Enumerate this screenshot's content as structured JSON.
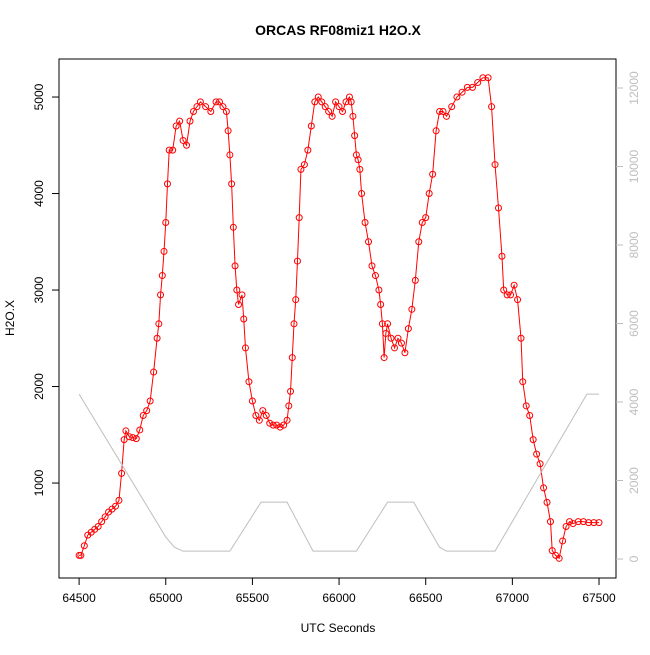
{
  "chart_data": {
    "type": "line",
    "title": "ORCAS RF08miz1 H2O.X",
    "x_label": "UTC Seconds",
    "y_label": "H2O.X",
    "xlim": [
      64384,
      67598
    ],
    "xticks": [
      64500,
      65000,
      65500,
      66000,
      66500,
      67000,
      67500
    ],
    "ylim": [
      16,
      5394
    ],
    "yticks": [
      1000,
      2000,
      3000,
      4000,
      5000
    ],
    "y2lim": [
      -484,
      12739
    ],
    "y2ticks": [
      0,
      2000,
      4000,
      6000,
      8000,
      10000,
      12000
    ],
    "series": [
      {
        "color": "#ff0000",
        "markers": true,
        "x": [
          64500,
          64510,
          64530,
          64550,
          64570,
          64590,
          64610,
          64630,
          64650,
          64670,
          64690,
          64710,
          64730,
          64745,
          64760,
          64770,
          64790,
          64810,
          64830,
          64850,
          64870,
          64890,
          64910,
          64930,
          64950,
          64960,
          64970,
          64980,
          64990,
          65000,
          65010,
          65020,
          65040,
          65060,
          65080,
          65100,
          65120,
          65140,
          65160,
          65180,
          65200,
          65230,
          65260,
          65290,
          65310,
          65330,
          65350,
          65360,
          65370,
          65380,
          65390,
          65400,
          65410,
          65420,
          65440,
          65450,
          65460,
          65480,
          65500,
          65520,
          65540,
          65560,
          65580,
          65600,
          65620,
          65640,
          65660,
          65680,
          65700,
          65710,
          65720,
          65730,
          65740,
          65750,
          65760,
          65770,
          65780,
          65800,
          65820,
          65840,
          65860,
          65880,
          65900,
          65920,
          65940,
          65960,
          65980,
          66000,
          66020,
          66040,
          66060,
          66070,
          66080,
          66090,
          66100,
          66110,
          66120,
          66130,
          66150,
          66170,
          66190,
          66210,
          66230,
          66240,
          66250,
          66260,
          66270,
          66280,
          66300,
          66320,
          66340,
          66360,
          66380,
          66400,
          66420,
          66440,
          66460,
          66480,
          66500,
          66520,
          66540,
          66560,
          66580,
          66600,
          66620,
          66650,
          66680,
          66710,
          66740,
          66770,
          66800,
          66830,
          66860,
          66880,
          66900,
          66920,
          66940,
          66950,
          66970,
          66990,
          67010,
          67030,
          67050,
          67060,
          67080,
          67100,
          67120,
          67140,
          67160,
          67180,
          67200,
          67220,
          67230,
          67250,
          67270,
          67290,
          67310,
          67330,
          67350,
          67380,
          67410,
          67440,
          67470,
          67500
        ],
        "values": [
          250,
          250,
          350,
          460,
          490,
          520,
          550,
          600,
          650,
          700,
          730,
          760,
          820,
          1100,
          1450,
          1540,
          1480,
          1470,
          1460,
          1550,
          1700,
          1750,
          1850,
          2150,
          2500,
          2650,
          2950,
          3150,
          3400,
          3700,
          4100,
          4450,
          4450,
          4700,
          4750,
          4550,
          4500,
          4750,
          4850,
          4900,
          4950,
          4900,
          4850,
          4950,
          4950,
          4900,
          4850,
          4650,
          4400,
          4100,
          3650,
          3250,
          3000,
          2850,
          2950,
          2700,
          2400,
          2050,
          1850,
          1700,
          1650,
          1750,
          1700,
          1620,
          1600,
          1600,
          1580,
          1600,
          1650,
          1800,
          1950,
          2300,
          2650,
          2900,
          3300,
          3750,
          4250,
          4300,
          4450,
          4700,
          4950,
          5000,
          4950,
          4900,
          4850,
          4800,
          4950,
          4900,
          4850,
          4950,
          5000,
          4950,
          4800,
          4600,
          4400,
          4350,
          4250,
          4000,
          3700,
          3500,
          3250,
          3150,
          3000,
          2850,
          2650,
          2300,
          2550,
          2650,
          2500,
          2400,
          2500,
          2450,
          2350,
          2600,
          2800,
          3100,
          3500,
          3700,
          3750,
          4000,
          4200,
          4650,
          4850,
          4850,
          4800,
          4900,
          5000,
          5050,
          5100,
          5100,
          5150,
          5200,
          5200,
          4900,
          4300,
          3850,
          3350,
          3000,
          2950,
          2950,
          3050,
          2900,
          2500,
          2050,
          1800,
          1700,
          1450,
          1300,
          1200,
          950,
          800,
          600,
          300,
          250,
          220,
          400,
          550,
          600,
          580,
          600,
          600,
          590,
          590,
          590
        ]
      },
      {
        "color": "#bebebe",
        "axis": "y2",
        "x": [
          64500,
          65000,
          65050,
          65100,
          65370,
          65550,
          65700,
          65850,
          66100,
          66280,
          66430,
          66580,
          66620,
          66900,
          67430,
          67500
        ],
        "values": [
          4200,
          560,
          300,
          200,
          200,
          1450,
          1450,
          200,
          200,
          1450,
          1450,
          300,
          200,
          200,
          4200,
          4200
        ]
      }
    ]
  }
}
